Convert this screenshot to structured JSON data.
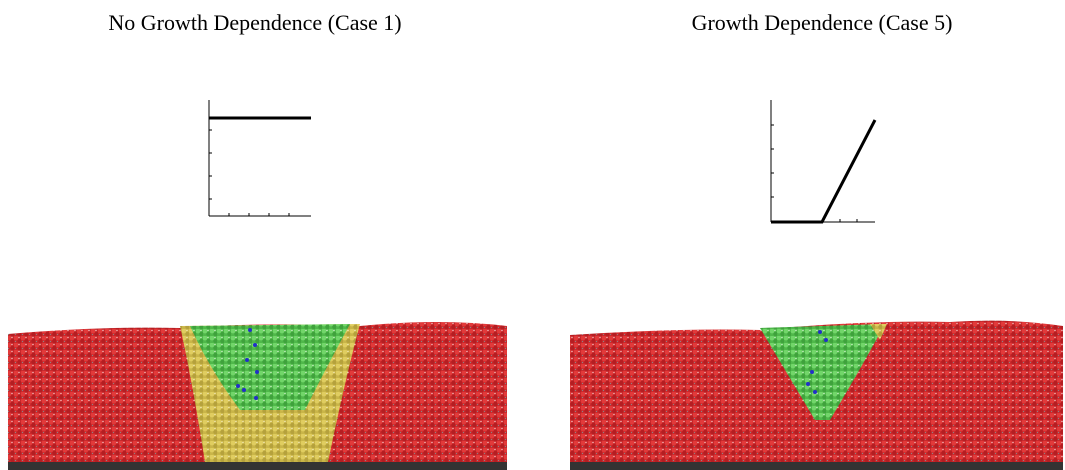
{
  "panels": [
    {
      "title": "No Growth Dependence (Case 1)"
    },
    {
      "title": "Growth Dependence (Case 5)"
    }
  ]
}
